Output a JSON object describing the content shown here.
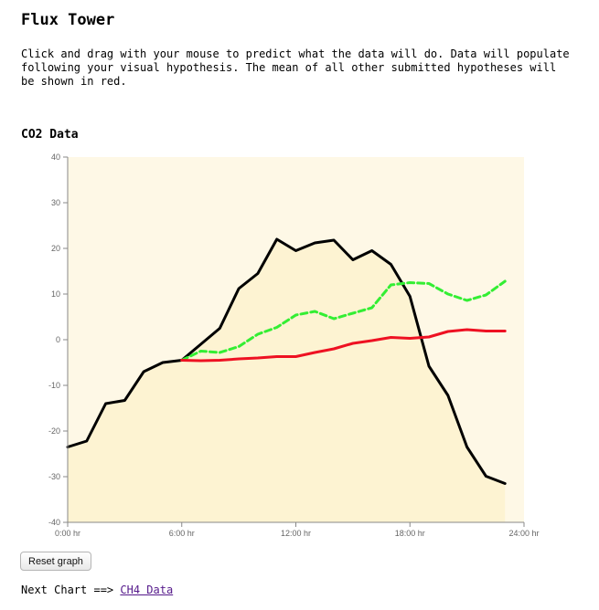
{
  "page": {
    "title": "Flux Tower",
    "instructions": "Click and drag with your mouse to predict what the data will do. Data will populate following your visual hypothesis. The mean of all other submitted hypotheses will be shown in red."
  },
  "chart_heading": "CO2 Data",
  "chart_data": {
    "type": "line",
    "title": "CO2 Data",
    "xlabel": "",
    "ylabel": "",
    "xlim": [
      0,
      24
    ],
    "ylim": [
      -40,
      40
    ],
    "x_ticks": [
      "0:00 hr",
      "6:00 hr",
      "12:00 hr",
      "18:00 hr",
      "24:00 hr"
    ],
    "y_ticks": [
      40,
      30,
      20,
      10,
      0,
      -10,
      -20,
      -30,
      -40
    ],
    "grid": false,
    "series": [
      {
        "role": "actual data",
        "color": "#000000",
        "style": "solid",
        "area_fill": "#fdf3d2",
        "x": [
          0,
          1,
          2,
          3,
          4,
          5,
          6,
          7,
          8,
          9,
          10,
          11,
          12,
          13,
          14,
          15,
          16,
          17,
          18,
          19,
          20,
          21,
          22,
          23
        ],
        "y": [
          -23.5,
          -22.2,
          -14.0,
          -13.3,
          -7.0,
          -5.0,
          -4.5,
          -1.0,
          2.5,
          11.2,
          14.5,
          22.0,
          19.5,
          21.2,
          21.8,
          17.5,
          19.5,
          16.5,
          9.5,
          -5.8,
          -12.2,
          -23.5,
          -29.9,
          -31.5
        ]
      },
      {
        "role": "your hypothesis",
        "color": "#33ee33",
        "style": "dashed",
        "x": [
          6,
          7,
          8,
          9,
          10,
          11,
          12,
          13,
          14,
          15,
          16,
          17,
          18,
          19,
          20,
          21,
          22,
          23
        ],
        "y": [
          -4.5,
          -2.5,
          -2.8,
          -1.5,
          1.2,
          2.7,
          5.4,
          6.2,
          4.6,
          5.8,
          7.0,
          12.0,
          12.5,
          12.3,
          10.0,
          8.6,
          9.8,
          12.8
        ]
      },
      {
        "role": "mean of other hypotheses",
        "color": "#ee1122",
        "style": "solid",
        "x": [
          6,
          7,
          8,
          9,
          10,
          11,
          12,
          13,
          14,
          15,
          16,
          17,
          18,
          19,
          20,
          21,
          22,
          23
        ],
        "y": [
          -4.5,
          -4.6,
          -4.5,
          -4.2,
          -4.0,
          -3.7,
          -3.7,
          -2.8,
          -2.0,
          -0.8,
          -0.2,
          0.5,
          0.3,
          0.6,
          1.8,
          2.2,
          1.9,
          1.9
        ]
      }
    ]
  },
  "controls": {
    "reset_label": "Reset graph",
    "next_prefix": "Next Chart ==>",
    "next_link": "CH4 Data"
  },
  "colors": {
    "plot_background": "#fef8e6"
  }
}
